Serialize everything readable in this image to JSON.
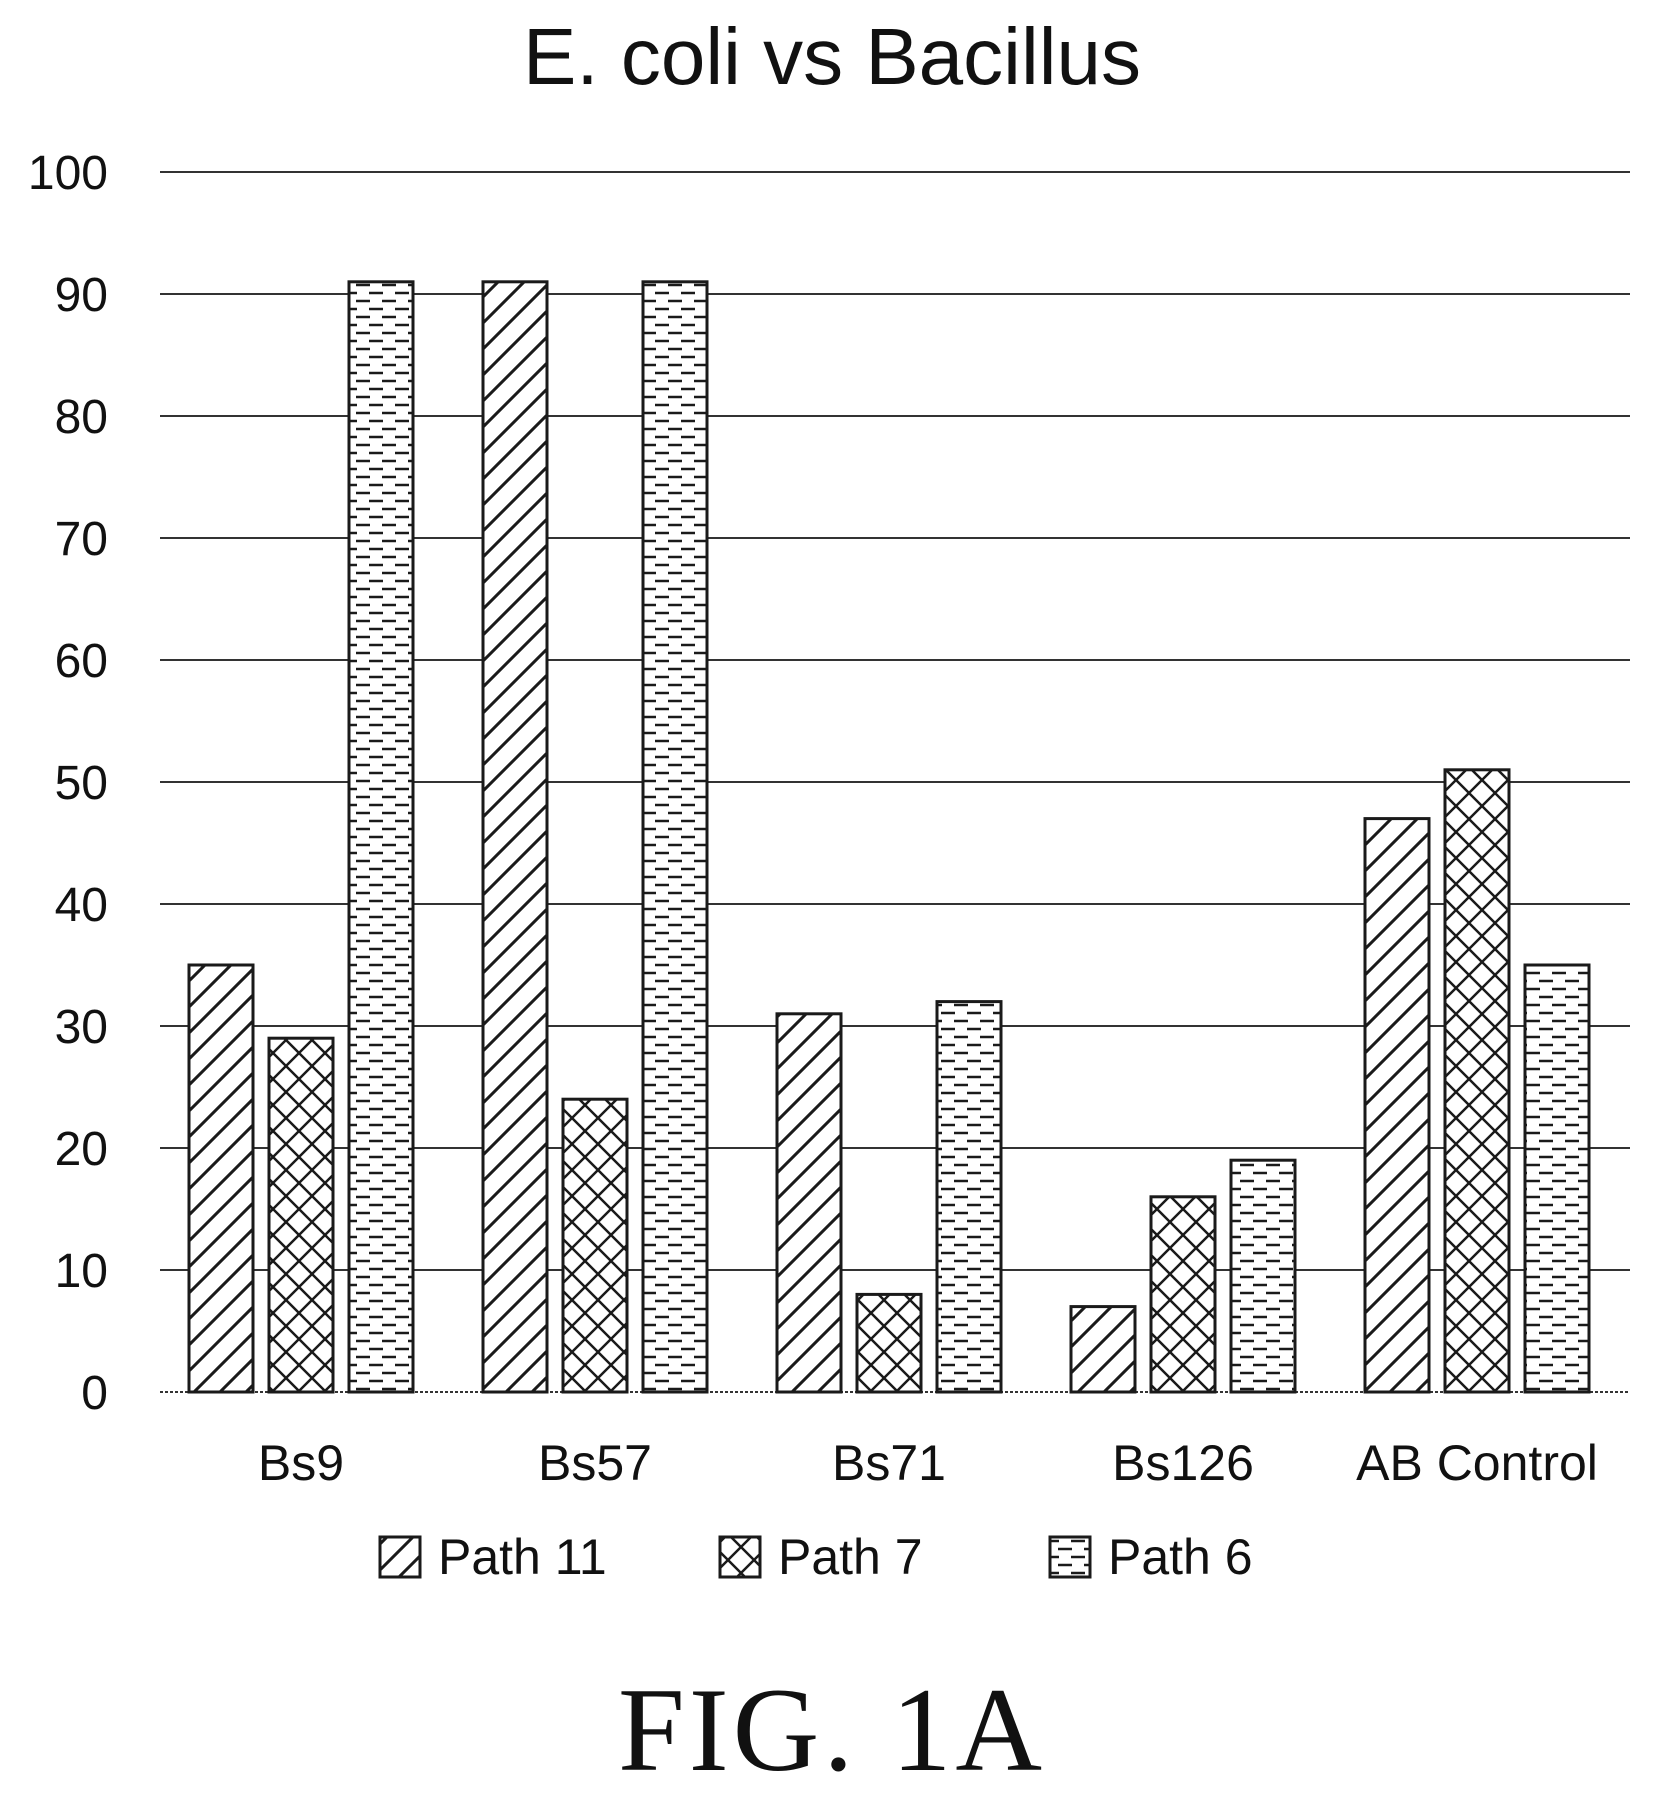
{
  "chart_data": {
    "type": "bar",
    "title": "E. coli vs Bacillus",
    "xlabel": "",
    "ylabel": "",
    "ylim": [
      0,
      100
    ],
    "yticks": [
      0,
      10,
      20,
      30,
      40,
      50,
      60,
      70,
      80,
      90,
      100
    ],
    "grid": true,
    "legend_position": "bottom",
    "categories": [
      "Bs9",
      "Bs57",
      "Bs71",
      "Bs126",
      "AB Control"
    ],
    "series": [
      {
        "name": "Path 11",
        "pattern": "diagonal-hatch",
        "values": [
          35,
          91,
          31,
          7,
          47
        ]
      },
      {
        "name": "Path 7",
        "pattern": "cross-hatch",
        "values": [
          29,
          24,
          8,
          16,
          51
        ]
      },
      {
        "name": "Path 6",
        "pattern": "dashes",
        "values": [
          91,
          91,
          32,
          19,
          35
        ]
      }
    ],
    "colors": {
      "ink": "#1a1a1a",
      "grid": "#333333",
      "background": "#ffffff"
    }
  },
  "figure_label": "FIG. 1A"
}
